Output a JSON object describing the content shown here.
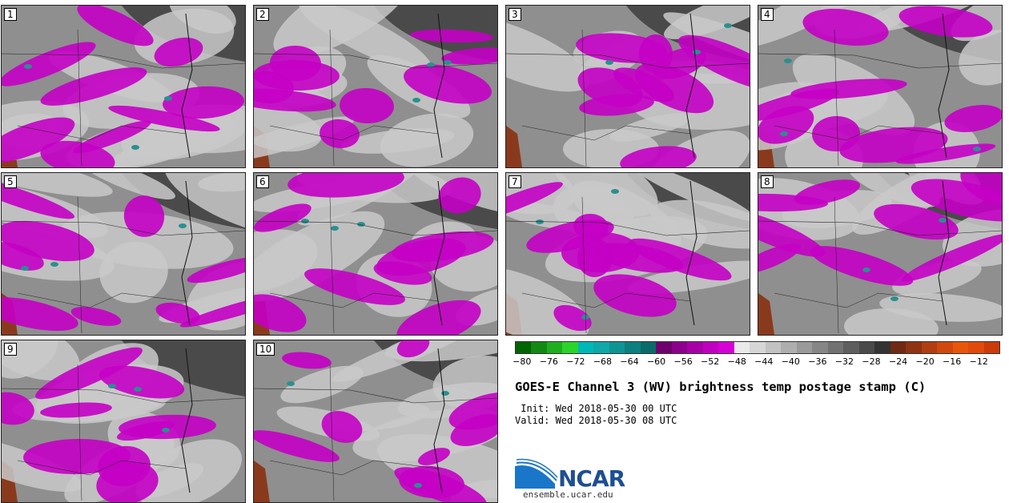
{
  "panels": [
    {
      "label": "1"
    },
    {
      "label": "2"
    },
    {
      "label": "3"
    },
    {
      "label": "4"
    },
    {
      "label": "5"
    },
    {
      "label": "6"
    },
    {
      "label": "7"
    },
    {
      "label": "8"
    },
    {
      "label": "9"
    },
    {
      "label": "10"
    }
  ],
  "colorbar": {
    "colors": [
      "#006400",
      "#128a12",
      "#1fae1f",
      "#2bd42b",
      "#00b8b8",
      "#10a8a8",
      "#0f9494",
      "#0c7f7f",
      "#0a6b6b",
      "#6e006e",
      "#8c008c",
      "#a600a6",
      "#bf00bf",
      "#d600d6",
      "#eaeaea",
      "#d6d6d6",
      "#c2c2c2",
      "#aeaeae",
      "#9a9a9a",
      "#868686",
      "#727272",
      "#5e5e5e",
      "#4a4a4a",
      "#333333",
      "#6e2a14",
      "#8f3312",
      "#b03e10",
      "#d0480d",
      "#e8560a",
      "#e24a0c",
      "#cc3a0a"
    ],
    "ticks": [
      "−80",
      "−76",
      "−72",
      "−68",
      "−64",
      "−60",
      "−56",
      "−52",
      "−48",
      "−44",
      "−40",
      "−36",
      "−32",
      "−28",
      "−24",
      "−20",
      "−16",
      "−12"
    ]
  },
  "title": "GOES-E Channel 3 (WV) brightness temp postage stamp (C)",
  "init": " Init: Wed 2018-05-30 00 UTC",
  "valid": "Valid: Wed 2018-05-30 08 UTC",
  "logo": {
    "text": "NCAR",
    "url": "ensemble.ucar.edu"
  }
}
